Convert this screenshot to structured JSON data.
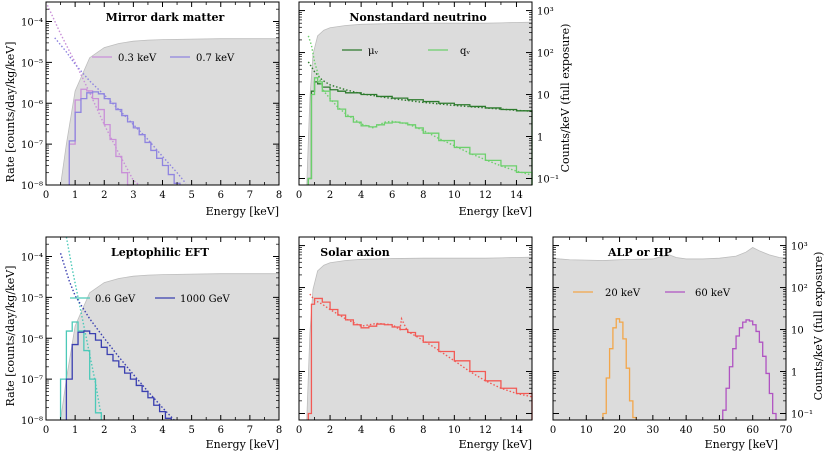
{
  "figure": {
    "left_ylabel": "Rate [counts/day/kg/keV]",
    "right_ylabel": "Counts/keV (full exposure)"
  },
  "chart_data": [
    {
      "id": "mirror",
      "type": "line",
      "title": "Mirror dark matter",
      "xlabel": "Energy [keV]",
      "ylabel": "Rate [counts/day/kg/keV]",
      "yscale": "log",
      "xlim": [
        0,
        8
      ],
      "ylim": [
        1e-08,
        0.0003
      ],
      "xticks": [
        0,
        1,
        2,
        3,
        4,
        5,
        6,
        7,
        8
      ],
      "yticks": [
        {
          "v": 1e-08,
          "label": "10⁻⁸"
        },
        {
          "v": 1e-07,
          "label": "10⁻⁷"
        },
        {
          "v": 1e-06,
          "label": "10⁻⁶"
        },
        {
          "v": 1e-05,
          "label": "10⁻⁵"
        },
        {
          "v": 0.0001,
          "label": "10⁻⁴"
        }
      ],
      "background_spectrum": {
        "x": [
          0,
          0.5,
          0.7,
          1.0,
          1.5,
          2.0,
          2.5,
          3.0,
          3.5,
          4.0,
          5.0,
          6.0,
          7.0,
          8.0
        ],
        "y": [
          1e-08,
          1e-08,
          1e-07,
          2e-06,
          1.3e-05,
          2.3e-05,
          2.9e-05,
          3.3e-05,
          3.5e-05,
          3.6e-05,
          3.7e-05,
          3.8e-05,
          3.8e-05,
          3.8e-05
        ]
      },
      "series": [
        {
          "name": "0.3 keV",
          "color": "#c98fd8",
          "dotted": {
            "x": [
              0.05,
              0.5,
              1.0,
              1.5,
              2.0,
              2.5,
              3.0,
              3.2
            ],
            "y": [
              0.00025,
              5e-05,
              1e-05,
              1.8e-06,
              3e-07,
              6e-08,
              1.3e-08,
              8e-09
            ]
          },
          "hist": {
            "edges": [
              0.8,
              1.0,
              1.2,
              1.4,
              1.6,
              1.8,
              2.0,
              2.2,
              2.4,
              2.6,
              2.8,
              3.0
            ],
            "values": [
              1e-07,
              1.2e-06,
              2.2e-06,
              2e-06,
              1.3e-06,
              7e-07,
              3e-07,
              1.3e-07,
              5e-08,
              2e-08,
              1e-08
            ]
          }
        },
        {
          "name": "0.7 keV",
          "color": "#8f84e0",
          "dotted": {
            "x": [
              0.3,
              0.7,
              1.0,
              1.5,
              2.0,
              2.5,
              3.0,
              3.5,
              4.0,
              4.5,
              4.8
            ],
            "y": [
              4e-05,
              1.8e-05,
              9e-06,
              3.5e-06,
              1.6e-06,
              7e-07,
              3e-07,
              1.3e-07,
              5e-08,
              2e-08,
              1.1e-08
            ]
          },
          "hist": {
            "edges": [
              0.8,
              1.0,
              1.2,
              1.4,
              1.6,
              1.8,
              2.0,
              2.2,
              2.4,
              2.6,
              2.8,
              3.0,
              3.2,
              3.4,
              3.6,
              3.8,
              4.0,
              4.2,
              4.4,
              4.6
            ],
            "values": [
              1.2e-07,
              6e-07,
              1.3e-06,
              1.8e-06,
              1.9e-06,
              1.7e-06,
              1.3e-06,
              1e-06,
              7e-07,
              5e-07,
              3.5e-07,
              2.5e-07,
              1.7e-07,
              1.1e-07,
              7e-08,
              4.5e-08,
              3e-08,
              1.8e-08,
              1.1e-08
            ]
          }
        }
      ]
    },
    {
      "id": "neutrino",
      "type": "line",
      "title": "Nonstandard neutrino",
      "xlabel": "Energy [keV]",
      "ylabel": "Counts/keV (full exposure)",
      "yscale": "log",
      "xlim": [
        0,
        15
      ],
      "ylim": [
        0.07,
        1600
      ],
      "xticks": [
        0,
        2,
        4,
        6,
        8,
        10,
        12,
        14
      ],
      "yticks": [
        {
          "v": 0.1,
          "label": "10⁻¹"
        },
        {
          "v": 1,
          "label": "1"
        },
        {
          "v": 10,
          "label": "10"
        },
        {
          "v": 100,
          "label": "10²"
        },
        {
          "v": 1000,
          "label": "10³"
        }
      ],
      "background_spectrum": {
        "x": [
          0,
          0.5,
          0.7,
          0.9,
          1.2,
          1.6,
          2.0,
          3.0,
          4.0,
          6.0,
          8.0,
          10.0,
          12.0,
          13.0,
          14.0,
          15.0
        ],
        "y": [
          0.07,
          0.07,
          8,
          90,
          250,
          340,
          390,
          440,
          470,
          490,
          500,
          500,
          500,
          510,
          520,
          530
        ]
      },
      "series": [
        {
          "name": "μᵥ",
          "color": "#2d7a2d",
          "dotted": {
            "x": [
              0.6,
              1.0,
              1.5,
              2.0,
              3.0,
              4.0,
              6.0,
              8.0,
              10.0,
              12.0,
              14.0,
              15.0
            ],
            "y": [
              60,
              35,
              22,
              17,
              13,
              10.5,
              8,
              6.5,
              5.5,
              4.8,
              4.2,
              4.0
            ]
          },
          "hist": {
            "edges": [
              0.6,
              0.8,
              1.0,
              1.2,
              1.5,
              2.0,
              2.5,
              3.0,
              4.0,
              5.0,
              6.0,
              7.0,
              8.0,
              9.0,
              10.0,
              11.0,
              12.0,
              13.0,
              14.0,
              15.0
            ],
            "values": [
              0.1,
              12,
              20,
              18,
              15,
              13,
              12,
              11,
              10,
              9,
              8.2,
              7.5,
              6.8,
              6.2,
              5.7,
              5.2,
              4.8,
              4.4,
              4.1
            ]
          }
        },
        {
          "name": "qᵥ",
          "color": "#6cd06c",
          "dotted": {
            "x": [
              0.6,
              0.8,
              1.0,
              1.3,
              1.6,
              2.0,
              2.5,
              3.0,
              4.0,
              4.8,
              5.5,
              6.0,
              7.0,
              8.0,
              9.0,
              10.0,
              11.0,
              12.0,
              13.0,
              14.0,
              15.0
            ],
            "y": [
              250,
              150,
              60,
              25,
              12,
              8,
              5,
              3.5,
              2.0,
              1.6,
              2.2,
              2.3,
              2.0,
              1.4,
              0.9,
              0.6,
              0.4,
              0.28,
              0.2,
              0.15,
              0.12
            ]
          },
          "hist": {
            "edges": [
              0.6,
              0.8,
              1.0,
              1.2,
              1.5,
              2.0,
              2.5,
              3.0,
              3.5,
              4.0,
              4.5,
              5.0,
              5.5,
              6.0,
              6.5,
              7.0,
              7.5,
              8.0,
              9.0,
              10.0,
              11.0,
              12.0,
              13.0,
              14.0,
              15.0
            ],
            "values": [
              0.1,
              10,
              25,
              20,
              12,
              7,
              4.5,
              3.0,
              2.2,
              1.8,
              1.7,
              1.9,
              2.1,
              2.2,
              2.1,
              1.9,
              1.6,
              1.2,
              0.8,
              0.55,
              0.38,
              0.27,
              0.2,
              0.14
            ]
          }
        }
      ]
    },
    {
      "id": "leptophilic",
      "type": "line",
      "title": "Leptophilic EFT",
      "xlabel": "Energy [keV]",
      "ylabel": "Rate [counts/day/kg/keV]",
      "yscale": "log",
      "xlim": [
        0,
        8
      ],
      "ylim": [
        1e-08,
        0.0003
      ],
      "xticks": [
        0,
        1,
        2,
        3,
        4,
        5,
        6,
        7,
        8
      ],
      "yticks": [
        {
          "v": 1e-08,
          "label": "10⁻⁸"
        },
        {
          "v": 1e-07,
          "label": "10⁻⁷"
        },
        {
          "v": 1e-06,
          "label": "10⁻⁶"
        },
        {
          "v": 1e-05,
          "label": "10⁻⁵"
        },
        {
          "v": 0.0001,
          "label": "10⁻⁴"
        }
      ],
      "background_spectrum": {
        "x": [
          0,
          0.5,
          0.7,
          1.0,
          1.5,
          2.0,
          2.5,
          3.0,
          3.5,
          4.0,
          5.0,
          6.0,
          7.0,
          8.0
        ],
        "y": [
          1e-08,
          1e-08,
          1e-07,
          2e-06,
          1.3e-05,
          2.3e-05,
          2.9e-05,
          3.3e-05,
          3.5e-05,
          3.6e-05,
          3.7e-05,
          3.8e-05,
          3.8e-05,
          3.8e-05
        ]
      },
      "series": [
        {
          "name": "0.6 GeV",
          "color": "#4cc9b8",
          "dotted": {
            "x": [
              0.7,
              0.9,
              1.1,
              1.3,
              1.5,
              1.7,
              1.9
            ],
            "y": [
              0.0003,
              5e-05,
              1e-05,
              2e-06,
              4e-07,
              8e-08,
              1.2e-08
            ]
          },
          "hist": {
            "edges": [
              0.5,
              0.7,
              0.9,
              1.1,
              1.3,
              1.5,
              1.7,
              1.9
            ],
            "values": [
              1e-07,
              1.5e-06,
              2.5e-06,
              1.5e-06,
              5e-07,
              1e-07,
              1.5e-08
            ]
          }
        },
        {
          "name": "1000 GeV",
          "color": "#3a3fb0",
          "dotted": {
            "x": [
              0.5,
              0.8,
              1.0,
              1.5,
              2.0,
              2.5,
              3.0,
              3.5,
              4.0,
              4.4
            ],
            "y": [
              0.00012,
              2.5e-05,
              1.1e-05,
              3e-06,
              1e-06,
              3.5e-07,
              1.3e-07,
              5e-08,
              2e-08,
              1e-08
            ]
          },
          "hist": {
            "edges": [
              0.7,
              0.9,
              1.1,
              1.3,
              1.5,
              1.7,
              1.9,
              2.1,
              2.3,
              2.5,
              2.7,
              2.9,
              3.1,
              3.3,
              3.5,
              3.7,
              3.9,
              4.1,
              4.3
            ],
            "values": [
              1e-07,
              7e-07,
              1.4e-06,
              1.5e-06,
              1.3e-06,
              9e-07,
              6e-07,
              4e-07,
              2.8e-07,
              2e-07,
              1.4e-07,
              1e-07,
              7e-08,
              5e-08,
              3.5e-08,
              2.3e-08,
              1.6e-08,
              1.1e-08
            ]
          }
        }
      ]
    },
    {
      "id": "solar",
      "type": "line",
      "title": "Solar axion",
      "xlabel": "Energy [keV]",
      "ylabel": "Counts/keV (full exposure)",
      "yscale": "log",
      "xlim": [
        0,
        15
      ],
      "ylim": [
        0.07,
        1600
      ],
      "xticks": [
        0,
        2,
        4,
        6,
        8,
        10,
        12,
        14
      ],
      "yticks": [
        {
          "v": 0.1,
          "label": "10⁻¹"
        },
        {
          "v": 1,
          "label": "1"
        },
        {
          "v": 10,
          "label": "10"
        },
        {
          "v": 100,
          "label": "10²"
        },
        {
          "v": 1000,
          "label": "10³"
        }
      ],
      "background_spectrum": {
        "x": [
          0,
          0.5,
          0.7,
          0.9,
          1.2,
          1.6,
          2.0,
          3.0,
          4.0,
          6.0,
          8.0,
          10.0,
          12.0,
          13.0,
          14.0,
          15.0
        ],
        "y": [
          0.07,
          0.07,
          8,
          90,
          250,
          340,
          390,
          440,
          470,
          490,
          500,
          500,
          500,
          510,
          520,
          530
        ]
      },
      "series": [
        {
          "name": "solar axion",
          "color": "#f25a55",
          "dotted": {
            "x": [
              0.7,
              1.0,
              1.5,
              2.0,
              3.0,
              4.0,
              5.0,
              6.0,
              6.5,
              6.6,
              7.0,
              8.0,
              9.0,
              10.0,
              11.0,
              12.0,
              13.0,
              14.0,
              15.0
            ],
            "y": [
              70,
              50,
              40,
              30,
              18,
              12,
              14,
              13,
              10,
              18,
              9,
              5.5,
              3.2,
              1.8,
              1.0,
              0.6,
              0.4,
              0.3,
              0.25
            ]
          },
          "hist": {
            "edges": [
              0.6,
              0.8,
              1.0,
              1.5,
              2.0,
              2.5,
              3.0,
              3.5,
              4.0,
              4.5,
              5.0,
              5.5,
              6.0,
              6.5,
              7.0,
              7.5,
              8.0,
              9.0,
              10.0,
              11.0,
              12.0,
              13.0,
              14.0,
              15.0
            ],
            "values": [
              0.1,
              40,
              55,
              45,
              30,
              22,
              17,
              13,
              11,
              12,
              13.5,
              13,
              11.5,
              10,
              8.5,
              7,
              5,
              3,
              1.8,
              1.0,
              0.6,
              0.4,
              0.3
            ]
          }
        }
      ]
    },
    {
      "id": "alp",
      "type": "line",
      "title": "ALP or HP",
      "xlabel": "Energy [keV]",
      "ylabel": "Counts/keV (full exposure)",
      "yscale": "log",
      "xlim": [
        0,
        70
      ],
      "ylim": [
        0.07,
        1600
      ],
      "xticks": [
        0,
        10,
        20,
        30,
        40,
        50,
        60,
        70
      ],
      "yticks": [
        {
          "v": 0.1,
          "label": "10⁻¹"
        },
        {
          "v": 1,
          "label": "1"
        },
        {
          "v": 10,
          "label": "10"
        },
        {
          "v": 100,
          "label": "10²"
        },
        {
          "v": 1000,
          "label": "10³"
        }
      ],
      "background_spectrum": {
        "x": [
          0,
          2,
          5,
          10,
          15,
          20,
          25,
          30,
          33,
          35,
          37,
          40,
          45,
          50,
          55,
          58,
          60,
          62,
          65,
          68,
          70
        ],
        "y": [
          500,
          480,
          460,
          450,
          440,
          460,
          470,
          480,
          560,
          600,
          520,
          480,
          480,
          500,
          560,
          700,
          900,
          750,
          600,
          520,
          500
        ]
      },
      "series": [
        {
          "name": "20 keV",
          "color": "#f2a64a",
          "hist": {
            "edges": [
              15,
              16,
              17,
              18,
              19,
              20,
              21,
              22,
              23,
              24,
              25
            ],
            "values": [
              0.1,
              0.7,
              3.5,
              11,
              18,
              15,
              6,
              1.2,
              0.2,
              0.08
            ]
          }
        },
        {
          "name": "60 keV",
          "color": "#b053c2",
          "hist": {
            "edges": [
              51,
              52,
              53,
              54,
              55,
              56,
              57,
              58,
              59,
              60,
              61,
              62,
              63,
              64,
              65,
              66,
              67
            ],
            "values": [
              0.12,
              0.4,
              1.3,
              3.5,
              7,
              11,
              15,
              17,
              16,
              13,
              9,
              5,
              2.3,
              0.9,
              0.3,
              0.1
            ]
          }
        }
      ]
    }
  ]
}
